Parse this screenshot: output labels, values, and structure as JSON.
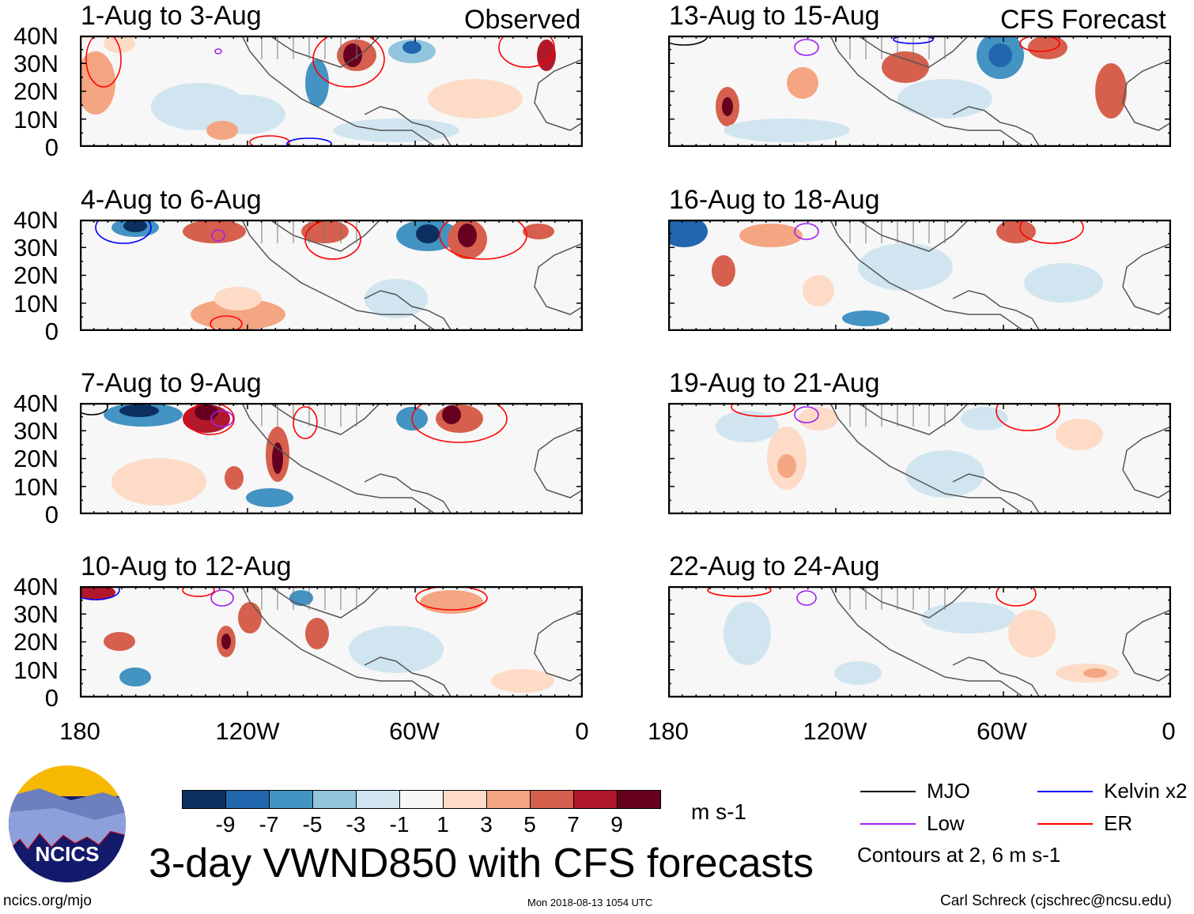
{
  "figure": {
    "title": "3-day VWND850 with CFS forecasts",
    "observed_label": "Observed",
    "forecast_label": "CFS Forecast",
    "units": "m s-1",
    "contour_note": "Contours at 2, 6 m s-1",
    "website": "ncics.org/mjo",
    "timestamp": "Mon 2018-08-13 1054 UTC",
    "author": "Carl Schreck (cjschrec@ncsu.edu)",
    "logo_text": "NCICS"
  },
  "panels": {
    "left": [
      {
        "title": "1-Aug to 3-Aug"
      },
      {
        "title": "4-Aug to 6-Aug"
      },
      {
        "title": "7-Aug to 9-Aug"
      },
      {
        "title": "10-Aug to 12-Aug"
      }
    ],
    "right": [
      {
        "title": "13-Aug to 15-Aug"
      },
      {
        "title": "16-Aug to 18-Aug"
      },
      {
        "title": "19-Aug to 21-Aug"
      },
      {
        "title": "22-Aug to 24-Aug"
      }
    ]
  },
  "axes": {
    "lat_labels": [
      "40N",
      "30N",
      "20N",
      "10N",
      "0"
    ],
    "lon_labels": [
      "180",
      "120W",
      "60W",
      "0"
    ]
  },
  "colorbar": {
    "labels": [
      "-9",
      "-7",
      "-5",
      "-3",
      "-1",
      "1",
      "3",
      "5",
      "7",
      "9"
    ],
    "colors": [
      "#0b2f60",
      "#2266ad",
      "#4393c3",
      "#92c5de",
      "#d1e5f0",
      "#f7f7f7",
      "#fddbc7",
      "#f4a582",
      "#d6604d",
      "#b2182b",
      "#67001f"
    ]
  },
  "legend": [
    {
      "label": "MJO",
      "color": "#000000"
    },
    {
      "label": "Kelvin x2",
      "color": "#0000ff"
    },
    {
      "label": "Low",
      "color": "#a020f0"
    },
    {
      "label": "ER",
      "color": "#ff0000"
    }
  ]
}
